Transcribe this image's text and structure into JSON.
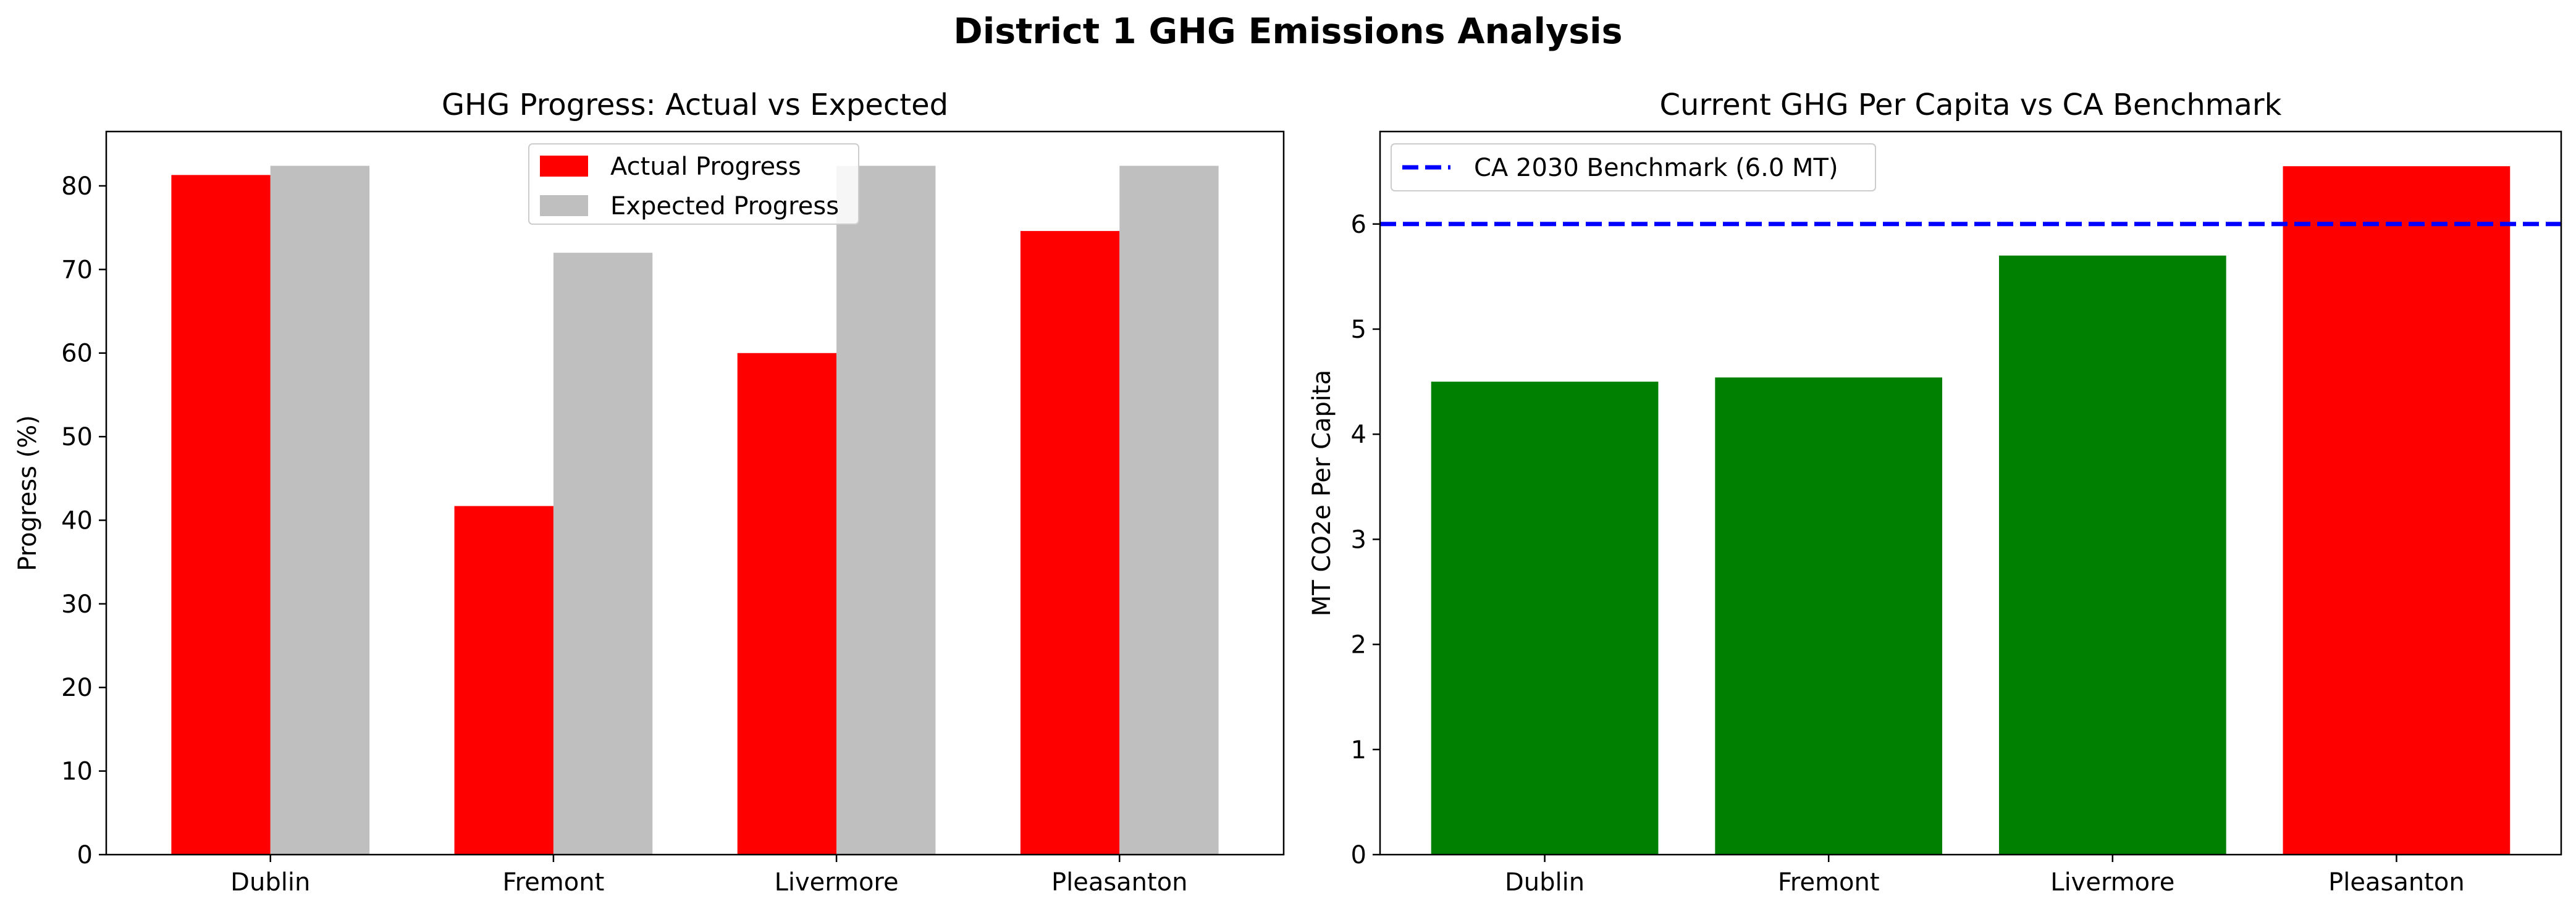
{
  "figure": {
    "title": "District 1 GHG Emissions Analysis"
  },
  "chart_data": [
    {
      "type": "bar",
      "title": "GHG Progress: Actual vs Expected",
      "xlabel": "",
      "ylabel": "Progress (%)",
      "categories": [
        "Dublin",
        "Fremont",
        "Livermore",
        "Pleasanton"
      ],
      "series": [
        {
          "name": "Actual Progress",
          "color": "#ff0000",
          "values": [
            81.3,
            41.7,
            60.0,
            74.6
          ]
        },
        {
          "name": "Expected Progress",
          "color": "#bfbfbf",
          "values": [
            82.4,
            72.0,
            82.4,
            82.4
          ]
        }
      ],
      "ylim": [
        0,
        86.5
      ],
      "yticks": [
        0,
        10,
        20,
        30,
        40,
        50,
        60,
        70,
        80
      ],
      "grid": false,
      "legend": "upper center"
    },
    {
      "type": "bar",
      "title": "Current GHG Per Capita vs CA Benchmark",
      "xlabel": "",
      "ylabel": "MT CO2e Per Capita",
      "categories": [
        "Dublin",
        "Fremont",
        "Livermore",
        "Pleasanton"
      ],
      "values": [
        4.5,
        4.54,
        5.7,
        6.55
      ],
      "bar_colors": [
        "#008000",
        "#008000",
        "#008000",
        "#ff0000"
      ],
      "reference_line": {
        "label": "CA 2030 Benchmark (6.0 MT)",
        "value": 6.0,
        "color": "#0000ff",
        "style": "dashed"
      },
      "ylim": [
        0,
        6.88
      ],
      "yticks": [
        0,
        1,
        2,
        3,
        4,
        5,
        6
      ],
      "grid": false,
      "legend": "upper left"
    }
  ]
}
